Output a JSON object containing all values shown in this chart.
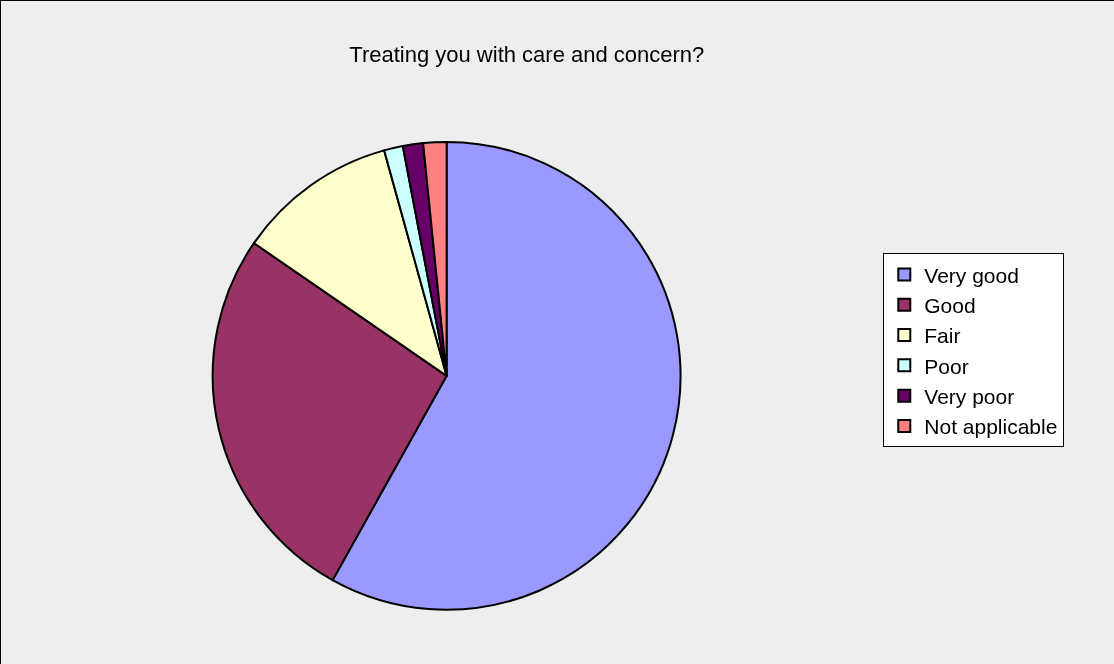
{
  "chart_data": {
    "type": "pie",
    "title": "Treating you with care and concern?",
    "categories": [
      "Very good",
      "Good",
      "Fair",
      "Poor",
      "Very poor",
      "Not applicable"
    ],
    "values": [
      58.1,
      26.5,
      11.1,
      1.3,
      1.4,
      1.6
    ],
    "colors": [
      "#9999ff",
      "#993366",
      "#ffffcc",
      "#ccffff",
      "#660066",
      "#ff8080"
    ],
    "legend": "right"
  }
}
